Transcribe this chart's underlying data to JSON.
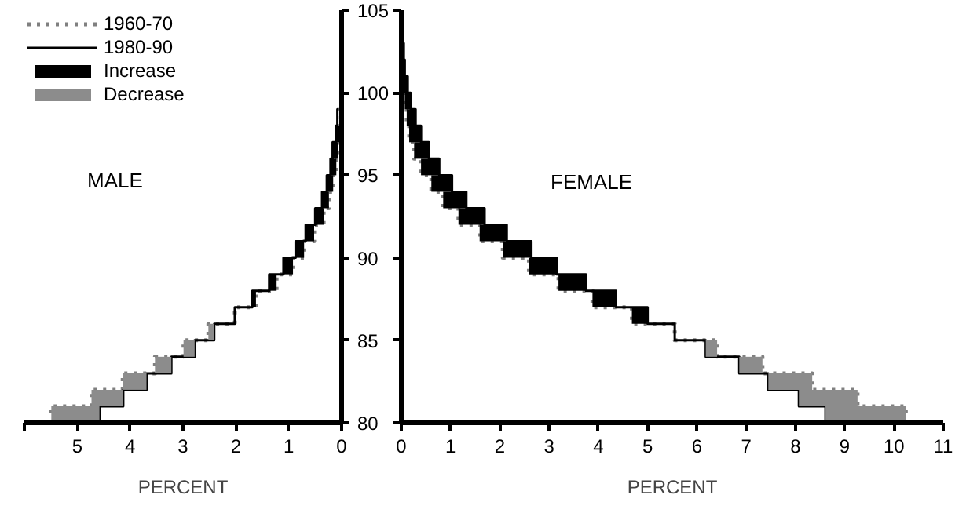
{
  "chart_data": [
    {
      "type": "bar",
      "orientation": "horizontal",
      "xlabel": "PERCENT",
      "annotations": [
        "MALE"
      ],
      "legend": "top left",
      "x": [
        80,
        81,
        82,
        83,
        84,
        85,
        86,
        87,
        88,
        89,
        90,
        91,
        92,
        93,
        94,
        95,
        96,
        97,
        98,
        99
      ],
      "xlim": [
        6,
        0
      ],
      "xticks": [
        0,
        1,
        2,
        3,
        4,
        5,
        {
          "value": 6,
          "label": null
        }
      ],
      "ylim": [
        80,
        105
      ],
      "yticks": [
        80,
        85,
        90,
        95,
        100,
        105
      ],
      "series": [
        {
          "name": "1960-70",
          "type": "step",
          "color": "#808080",
          "line_style": "dotted",
          "values": [
            5.49,
            4.73,
            4.14,
            3.53,
            2.99,
            2.52,
            2.02,
            1.62,
            1.23,
            0.92,
            0.71,
            0.52,
            0.34,
            0.24,
            0.16,
            0.1,
            0.06,
            0.03,
            0.01,
            0.01
          ]
        },
        {
          "name": "1980-90",
          "type": "step",
          "color": "#000000",
          "line_style": "solid",
          "values": [
            4.58,
            4.13,
            3.69,
            3.22,
            2.78,
            2.41,
            2.02,
            1.69,
            1.37,
            1.1,
            0.87,
            0.68,
            0.5,
            0.37,
            0.28,
            0.21,
            0.17,
            0.11,
            0.08,
            0.05
          ]
        },
        {
          "name": "Increase",
          "color": "#000000",
          "base": [
            null,
            null,
            null,
            null,
            null,
            null,
            null,
            1.62,
            1.23,
            0.92,
            0.71,
            0.52,
            0.34,
            0.24,
            0.16,
            0.1,
            0.06,
            0.03,
            null,
            null
          ],
          "values": [
            null,
            null,
            null,
            null,
            null,
            null,
            null,
            0.07,
            0.14,
            0.18,
            0.16,
            0.16,
            0.16,
            0.13,
            0.12,
            0.11,
            0.11,
            0.08,
            null,
            null
          ]
        },
        {
          "name": "Decrease",
          "color": "#8c8c8c",
          "base": [
            4.58,
            4.13,
            3.69,
            3.22,
            2.78,
            2.41,
            null,
            null,
            null,
            null,
            null,
            null,
            null,
            null,
            null,
            null,
            null,
            null,
            null,
            null
          ],
          "values": [
            0.91,
            0.6,
            0.45,
            0.31,
            0.21,
            0.11,
            null,
            null,
            null,
            null,
            null,
            null,
            null,
            null,
            null,
            null,
            null,
            null,
            null,
            null
          ]
        }
      ]
    },
    {
      "type": "bar",
      "orientation": "horizontal",
      "xlabel": "PERCENT",
      "annotations": [
        "FEMALE"
      ],
      "tick_labels": "x",
      "x": [
        80,
        81,
        82,
        83,
        84,
        85,
        86,
        87,
        88,
        89,
        90,
        91,
        92,
        93,
        94,
        95,
        96,
        97,
        98,
        99,
        100,
        101,
        102,
        103,
        104
      ],
      "xlim": [
        0,
        11
      ],
      "xticks": [
        0,
        1,
        2,
        3,
        4,
        5,
        6,
        7,
        8,
        9,
        10,
        11
      ],
      "ylim": [
        80,
        105
      ],
      "yticks": [
        80,
        85,
        90,
        95,
        100,
        105
      ],
      "series": [
        {
          "type": "step",
          "color": "#808080",
          "line_style": "dotted",
          "values": [
            10.24,
            9.26,
            8.34,
            7.33,
            6.41,
            5.55,
            4.68,
            3.88,
            3.19,
            2.59,
            2.06,
            1.59,
            1.16,
            0.85,
            0.61,
            0.4,
            0.26,
            0.16,
            0.11,
            0.07,
            0.05,
            0.03,
            0.01,
            0,
            0
          ]
        },
        {
          "type": "step",
          "color": "#000000",
          "line_style": "solid",
          "values": [
            8.61,
            8.07,
            7.45,
            6.86,
            6.18,
            5.55,
            5.0,
            4.36,
            3.75,
            3.15,
            2.64,
            2.14,
            1.69,
            1.32,
            1.03,
            0.77,
            0.56,
            0.4,
            0.29,
            0.19,
            0.13,
            0.07,
            0.05,
            0.03,
            0.01
          ]
        },
        {
          "color": "#000000",
          "base": [
            null,
            null,
            null,
            null,
            null,
            null,
            4.68,
            3.88,
            3.19,
            2.59,
            2.06,
            1.59,
            1.16,
            0.85,
            0.61,
            0.4,
            0.26,
            0.16,
            0.11,
            0.07,
            0.05,
            0.03,
            0.01,
            0,
            0
          ],
          "values": [
            null,
            null,
            null,
            null,
            null,
            null,
            0.32,
            0.48,
            0.56,
            0.56,
            0.58,
            0.55,
            0.53,
            0.47,
            0.42,
            0.37,
            0.3,
            0.24,
            0.18,
            0.12,
            0.08,
            0.04,
            0.04,
            0.03,
            0.01
          ]
        },
        {
          "color": "#8c8c8c",
          "base": [
            8.61,
            8.07,
            7.45,
            6.86,
            6.18,
            null,
            null,
            null,
            null,
            null,
            null,
            null,
            null,
            null,
            null,
            null,
            null,
            null,
            null,
            null,
            null,
            null,
            null,
            null,
            null
          ],
          "values": [
            1.63,
            1.19,
            0.89,
            0.47,
            0.23,
            null,
            null,
            null,
            null,
            null,
            null,
            null,
            null,
            null,
            null,
            null,
            null,
            null,
            null,
            null,
            null,
            null,
            null,
            null,
            null
          ]
        }
      ]
    }
  ]
}
